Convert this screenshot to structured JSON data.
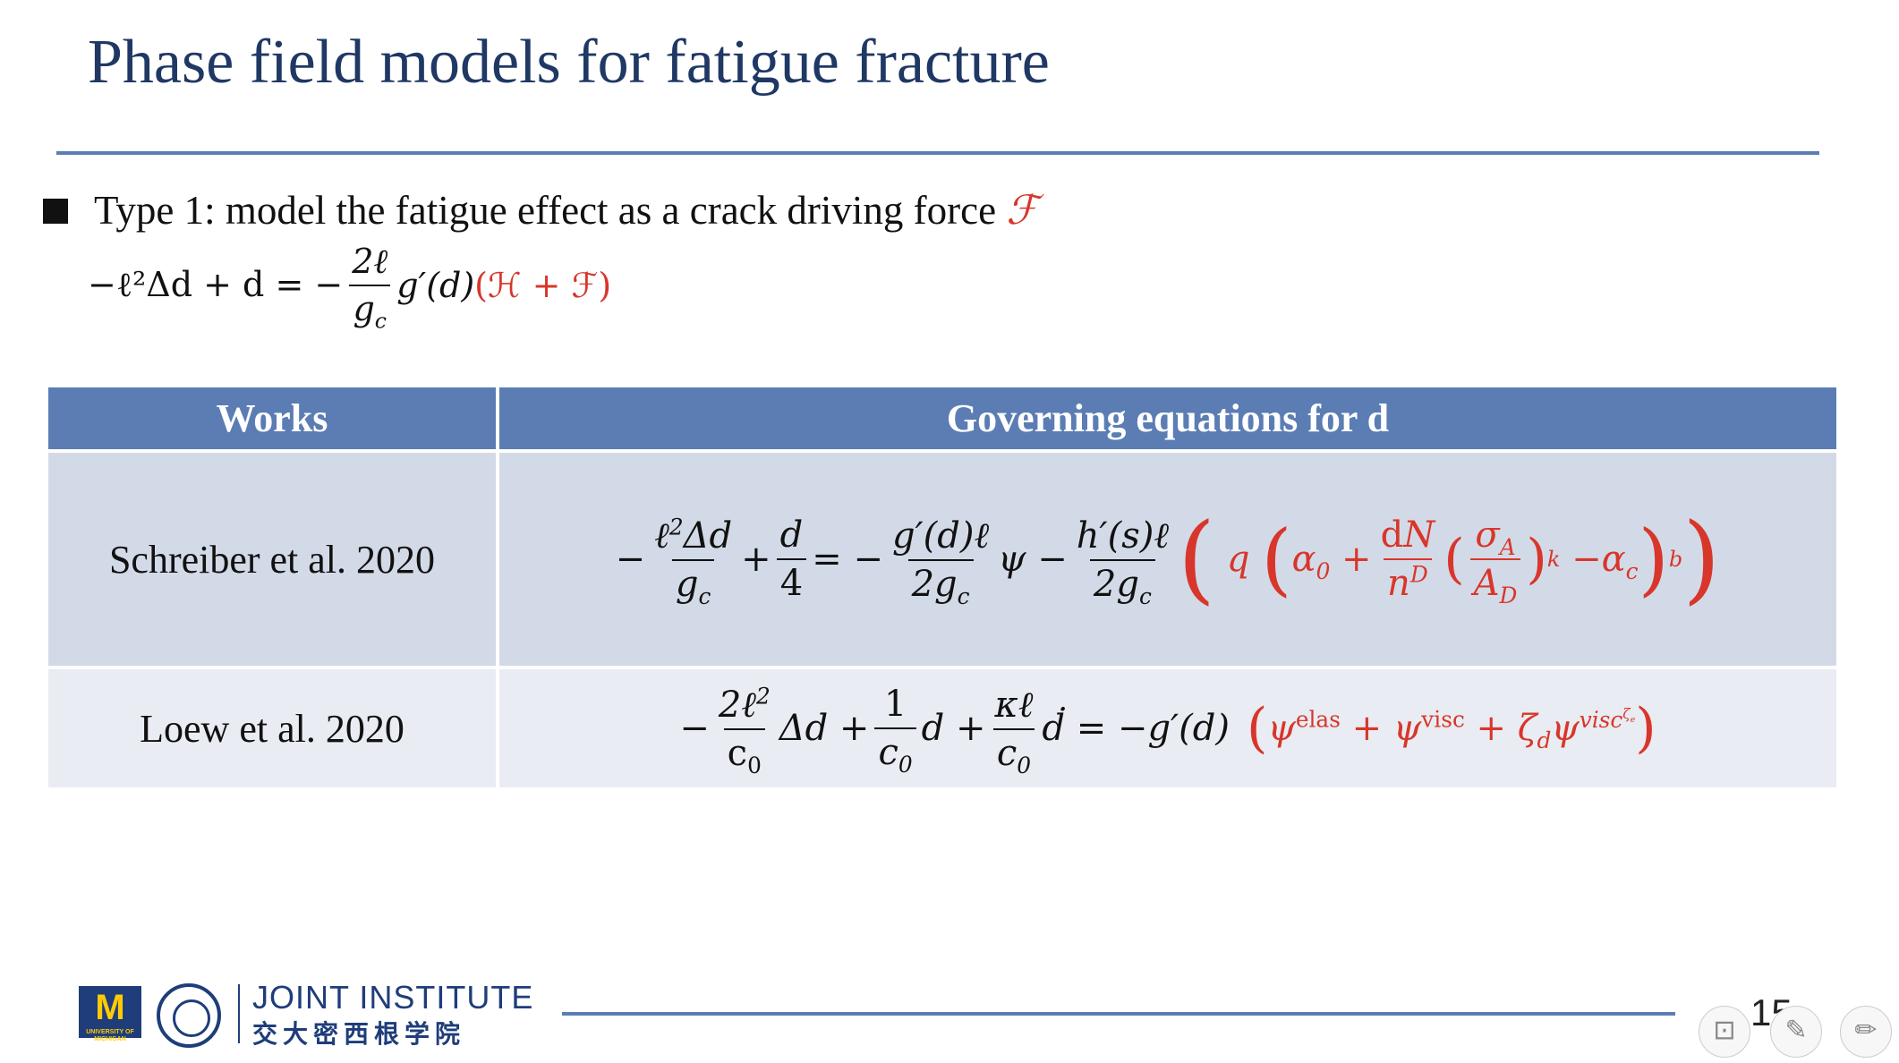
{
  "title": "Phase field models for fatigue fracture",
  "bullet": {
    "text": "Type 1: model the fatigue effect as a crack driving force ",
    "symbol": "ℱ"
  },
  "equation_main": {
    "lhs": "−ℓ²Δd + d = −",
    "frac_num": "2ℓ",
    "frac_den": "g_c",
    "rhs_black": "g′(d)",
    "rhs_red": "(ℋ + ℱ)"
  },
  "table": {
    "headers": [
      "Works",
      "Governing equations for d"
    ],
    "rows": [
      {
        "work": "Schreiber et al. 2020"
      },
      {
        "work": "Loew et al. 2020"
      }
    ]
  },
  "footer": {
    "institute_en": "JOINT INSTITUTE",
    "institute_cn": "交大密西根学院",
    "michigan_letter": "M",
    "michigan_sub": "UNIVERSITY OF MICHIGAN",
    "page_number": "15"
  },
  "colors": {
    "title": "#1f3864",
    "accent": "#5b7db4",
    "highlight": "#d8362b"
  }
}
